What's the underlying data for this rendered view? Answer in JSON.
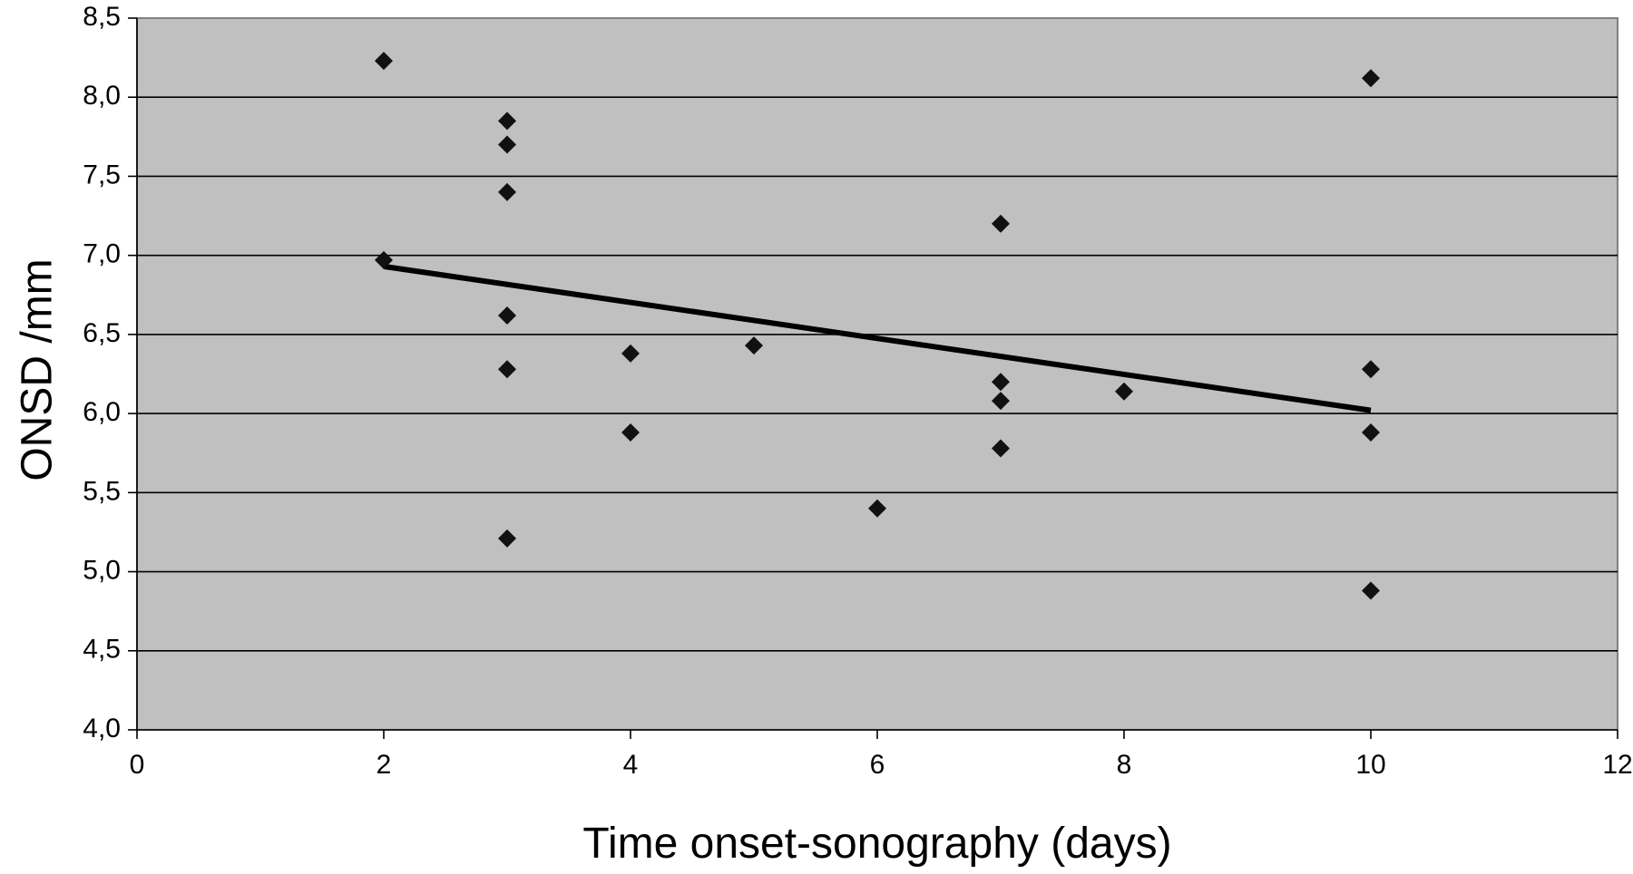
{
  "chart_data": {
    "type": "scatter",
    "title": "",
    "xlabel": "Time onset-sonography (days)",
    "ylabel": "ONSD /mm",
    "xlim": [
      0,
      12
    ],
    "ylim": [
      4.0,
      8.5
    ],
    "x_ticks": [
      0,
      2,
      4,
      6,
      8,
      10,
      12
    ],
    "x_tick_labels": [
      "0",
      "2",
      "4",
      "6",
      "8",
      "10",
      "12"
    ],
    "y_ticks": [
      4.0,
      4.5,
      5.0,
      5.5,
      6.0,
      6.5,
      7.0,
      7.5,
      8.0,
      8.5
    ],
    "y_tick_labels": [
      "4,0",
      "4,5",
      "5,0",
      "5,5",
      "6,0",
      "6,5",
      "7,0",
      "7,5",
      "8,0",
      "8,5"
    ],
    "grid": "horizontal",
    "legend": "none",
    "marker": "diamond",
    "plot_background": "#c0c0c0",
    "marker_color": "#111111",
    "line_color": "#000000",
    "series": [
      {
        "points": [
          {
            "x": 2,
            "y": 8.23
          },
          {
            "x": 2,
            "y": 6.97
          },
          {
            "x": 3,
            "y": 7.85
          },
          {
            "x": 3,
            "y": 7.7
          },
          {
            "x": 3,
            "y": 7.4
          },
          {
            "x": 3,
            "y": 6.62
          },
          {
            "x": 3,
            "y": 6.28
          },
          {
            "x": 3,
            "y": 5.21
          },
          {
            "x": 4,
            "y": 6.38
          },
          {
            "x": 4,
            "y": 5.88
          },
          {
            "x": 5,
            "y": 6.43
          },
          {
            "x": 6,
            "y": 5.4
          },
          {
            "x": 7,
            "y": 7.2
          },
          {
            "x": 7,
            "y": 6.2
          },
          {
            "x": 7,
            "y": 6.08
          },
          {
            "x": 7,
            "y": 5.78
          },
          {
            "x": 8,
            "y": 6.14
          },
          {
            "x": 10,
            "y": 8.12
          },
          {
            "x": 10,
            "y": 6.28
          },
          {
            "x": 10,
            "y": 5.88
          },
          {
            "x": 10,
            "y": 4.88
          }
        ]
      }
    ],
    "trendline": {
      "x": [
        2,
        10
      ],
      "y": [
        6.93,
        6.02
      ]
    }
  }
}
